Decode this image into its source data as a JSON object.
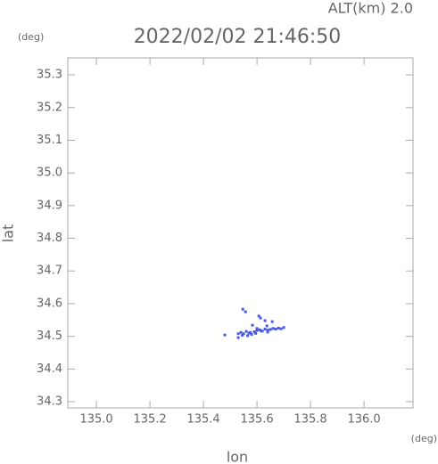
{
  "chart_data": {
    "type": "scatter",
    "title": "2022/02/02 21:46:50",
    "subtitle": "ALT(km) 2.0",
    "x_label": "lon",
    "y_label": "lat",
    "x_unit": "(deg)",
    "y_unit": "(deg)",
    "x": [
      135.547,
      135.557,
      135.607,
      135.613,
      135.63,
      135.657,
      135.583,
      135.637,
      135.48,
      135.53,
      135.54,
      135.55,
      135.56,
      135.57,
      135.58,
      135.59,
      135.6,
      135.61,
      135.62,
      135.63,
      135.64,
      135.65,
      135.66,
      135.67,
      135.68,
      135.69,
      135.53,
      135.545,
      135.565,
      135.575,
      135.595,
      135.615,
      135.64,
      135.6,
      135.7
    ],
    "values": [
      34.583,
      34.575,
      34.562,
      34.556,
      34.548,
      34.545,
      34.534,
      34.532,
      34.504,
      34.496,
      34.512,
      34.508,
      34.515,
      34.51,
      34.506,
      34.514,
      34.518,
      34.52,
      34.516,
      34.522,
      34.519,
      34.521,
      34.524,
      34.522,
      34.525,
      34.523,
      34.508,
      34.503,
      34.502,
      34.512,
      34.509,
      34.517,
      34.513,
      34.524,
      34.527
    ],
    "color": "#4a5ae6",
    "xlim": [
      134.893,
      136.183
    ],
    "ylim": [
      34.281,
      35.352
    ],
    "xticks": [
      {
        "value": 135,
        "label": "135.0"
      },
      135.2,
      135.4,
      135.6,
      135.8,
      {
        "value": 136,
        "label": "136.0"
      }
    ],
    "yticks": [
      34.3,
      34.4,
      34.5,
      34.6,
      34.7,
      34.8,
      34.9,
      {
        "value": 35,
        "label": "35.0"
      },
      35.1,
      35.2,
      35.3
    ]
  }
}
